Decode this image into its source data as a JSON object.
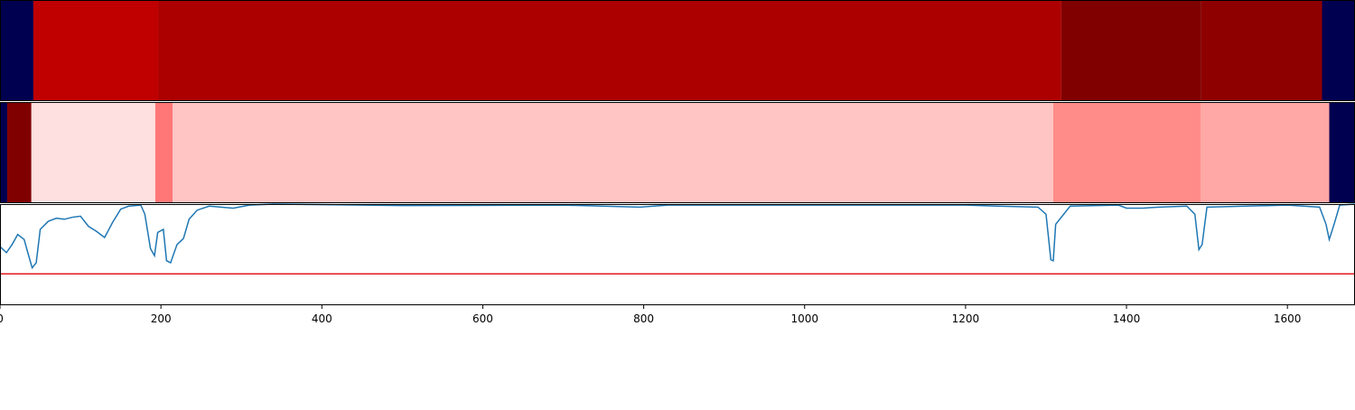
{
  "chart_data": [
    {
      "type": "segments",
      "xlim": [
        0,
        1684
      ],
      "segments": [
        {
          "start": 0,
          "end": 41.5,
          "color": "#000050"
        },
        {
          "start": 41.5,
          "end": 196.5,
          "color": "#c00000"
        },
        {
          "start": 196.5,
          "end": 1319,
          "color": "#ac0000"
        },
        {
          "start": 1319,
          "end": 1493,
          "color": "#800000"
        },
        {
          "start": 1493,
          "end": 1643,
          "color": "#8e0000"
        },
        {
          "start": 1643,
          "end": 1684,
          "color": "#000050"
        }
      ]
    },
    {
      "type": "segments",
      "xlim": [
        0,
        1684
      ],
      "segments": [
        {
          "start": 0,
          "end": 9,
          "color": "#000050"
        },
        {
          "start": 9,
          "end": 39,
          "color": "#800000"
        },
        {
          "start": 39,
          "end": 193,
          "color": "#ffe0e0"
        },
        {
          "start": 193,
          "end": 214.5,
          "color": "#ff7777"
        },
        {
          "start": 214.5,
          "end": 1309,
          "color": "#ffc4c4"
        },
        {
          "start": 1309,
          "end": 1492,
          "color": "#ff8c88"
        },
        {
          "start": 1492,
          "end": 1652,
          "color": "#ffa8a6"
        },
        {
          "start": 1652,
          "end": 1684,
          "color": "#000050"
        }
      ]
    },
    {
      "type": "line",
      "xlim": [
        0,
        1684
      ],
      "ylim": [
        0,
        1
      ],
      "xticks": [
        0,
        200,
        400,
        600,
        800,
        1000,
        1200,
        1400,
        1600
      ],
      "threshold": 0.31,
      "threshold_color": "#e41a1c",
      "series": [
        {
          "color": "#1f77b4",
          "x": [
            0,
            8,
            15,
            22,
            30,
            36,
            40,
            45,
            50,
            60,
            70,
            80,
            90,
            100,
            110,
            120,
            130,
            140,
            150,
            160,
            175,
            180,
            187,
            192,
            196,
            203,
            207,
            212,
            220,
            228,
            235,
            245,
            260,
            290,
            310,
            340,
            500,
            700,
            795,
            830,
            1000,
            1200,
            1240,
            1290,
            1300,
            1306,
            1309,
            1312,
            1330,
            1390,
            1400,
            1420,
            1440,
            1475,
            1485,
            1490,
            1494,
            1500,
            1600,
            1640,
            1648,
            1652,
            1658,
            1665,
            1684
          ],
          "values": [
            0.58,
            0.52,
            0.6,
            0.7,
            0.65,
            0.48,
            0.37,
            0.42,
            0.75,
            0.83,
            0.86,
            0.85,
            0.87,
            0.88,
            0.78,
            0.73,
            0.67,
            0.82,
            0.95,
            0.98,
            0.99,
            0.9,
            0.56,
            0.49,
            0.72,
            0.75,
            0.44,
            0.42,
            0.6,
            0.66,
            0.85,
            0.94,
            0.98,
            0.96,
            0.99,
            1.0,
            0.985,
            0.99,
            0.97,
            0.99,
            0.99,
            0.99,
            0.98,
            0.97,
            0.9,
            0.45,
            0.44,
            0.8,
            0.98,
            0.99,
            0.96,
            0.96,
            0.97,
            0.98,
            0.9,
            0.55,
            0.6,
            0.97,
            0.99,
            0.97,
            0.8,
            0.65,
            0.8,
            0.99,
            1.0
          ]
        }
      ]
    }
  ]
}
